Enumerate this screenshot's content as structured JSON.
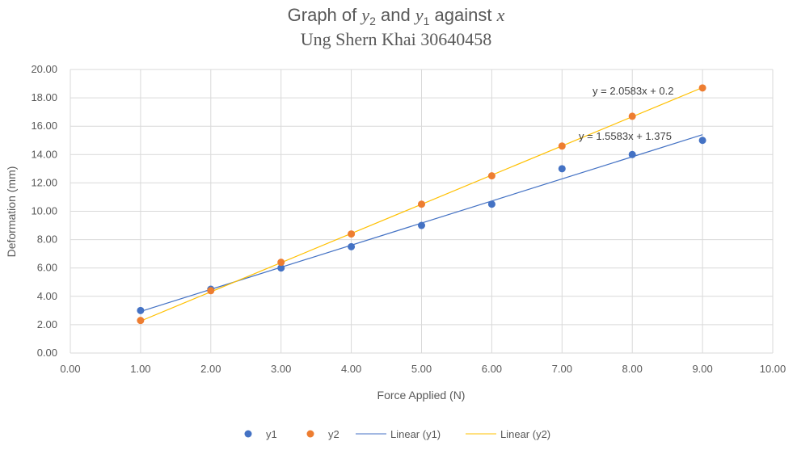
{
  "chart_data": {
    "type": "scatter",
    "title": {
      "prefix": "Graph of ",
      "v1": "y",
      "v1sub": "2",
      "mid": " and ",
      "v2": "y",
      "v2sub": "1",
      "suffix": " against ",
      "v3": "x"
    },
    "subtitle": "Ung Shern Khai 30640458",
    "xlabel": "Force Applied (N)",
    "ylabel": "Deformation (mm)",
    "xlim": [
      0,
      10
    ],
    "ylim": [
      0,
      20
    ],
    "xticks": [
      "0.00",
      "1.00",
      "2.00",
      "3.00",
      "4.00",
      "5.00",
      "6.00",
      "7.00",
      "8.00",
      "9.00",
      "10.00"
    ],
    "yticks": [
      "0.00",
      "2.00",
      "4.00",
      "6.00",
      "8.00",
      "10.00",
      "12.00",
      "14.00",
      "16.00",
      "18.00",
      "20.00"
    ],
    "grid": true,
    "legend_position": "bottom",
    "series": [
      {
        "name": "y1",
        "color": "#4472C4",
        "x": [
          1,
          2,
          3,
          4,
          5,
          6,
          7,
          8,
          9
        ],
        "y": [
          3.0,
          4.5,
          6.0,
          7.5,
          9.0,
          10.5,
          13.0,
          14.0,
          15.0
        ]
      },
      {
        "name": "y2",
        "color": "#ED7D31",
        "x": [
          1,
          2,
          3,
          4,
          5,
          6,
          7,
          8,
          9
        ],
        "y": [
          2.3,
          4.4,
          6.4,
          8.4,
          10.5,
          12.5,
          14.6,
          16.7,
          18.7
        ]
      }
    ],
    "trendlines": [
      {
        "name": "Linear (y1)",
        "color": "#4472C4",
        "slope": 1.5583,
        "intercept": 1.375,
        "equation": "y = 1.5583x + 1.375",
        "x_range": [
          1,
          9
        ]
      },
      {
        "name": "Linear (y2)",
        "color": "#FFC000",
        "slope": 2.0583,
        "intercept": 0.2,
        "equation": "y = 2.0583x + 0.2",
        "x_range": [
          1,
          9
        ]
      }
    ]
  }
}
